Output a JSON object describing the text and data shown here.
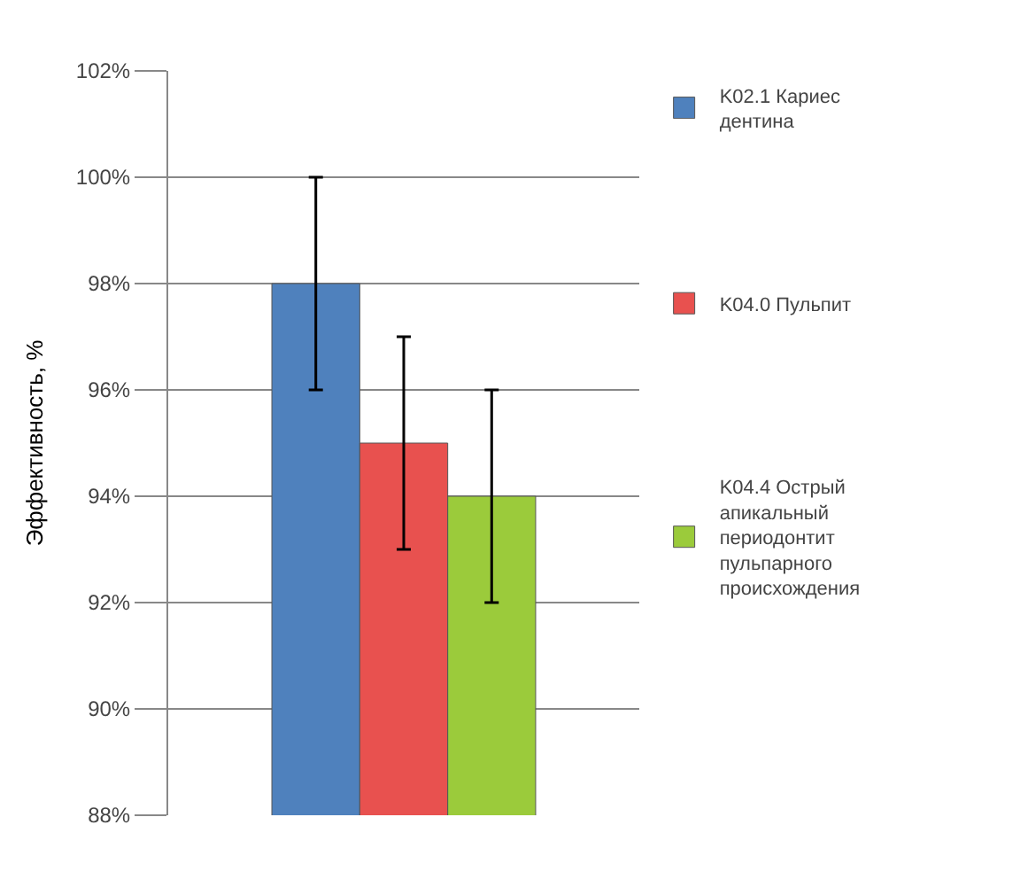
{
  "chart_data": {
    "type": "bar",
    "ylabel": "Эффективность, %",
    "categories": [
      null
    ],
    "series": [
      {
        "name": "K02.1 Кариес дентина",
        "color": "#4f81bd",
        "values": [
          98
        ],
        "errors": [
          2
        ]
      },
      {
        "name": "K04.0 Пульпит",
        "color": "#e8514f",
        "values": [
          95
        ],
        "errors": [
          2
        ]
      },
      {
        "name": "K04.4 Острый апикальный периодонтит пульпарного происхождения",
        "color": "#9bcb3b",
        "values": [
          94
        ],
        "errors": [
          2
        ]
      }
    ],
    "ylim": [
      88,
      102
    ],
    "yticks": [
      {
        "value": 88,
        "label": "88%"
      },
      {
        "value": 90,
        "label": "90%"
      },
      {
        "value": 92,
        "label": "92%"
      },
      {
        "value": 94,
        "label": "94%"
      },
      {
        "value": 96,
        "label": "96%"
      },
      {
        "value": 98,
        "label": "98%"
      },
      {
        "value": 100,
        "label": "100%"
      },
      {
        "value": 102,
        "label": "102%"
      }
    ],
    "grid": "y",
    "legend": "right",
    "tick_labels": "y"
  }
}
